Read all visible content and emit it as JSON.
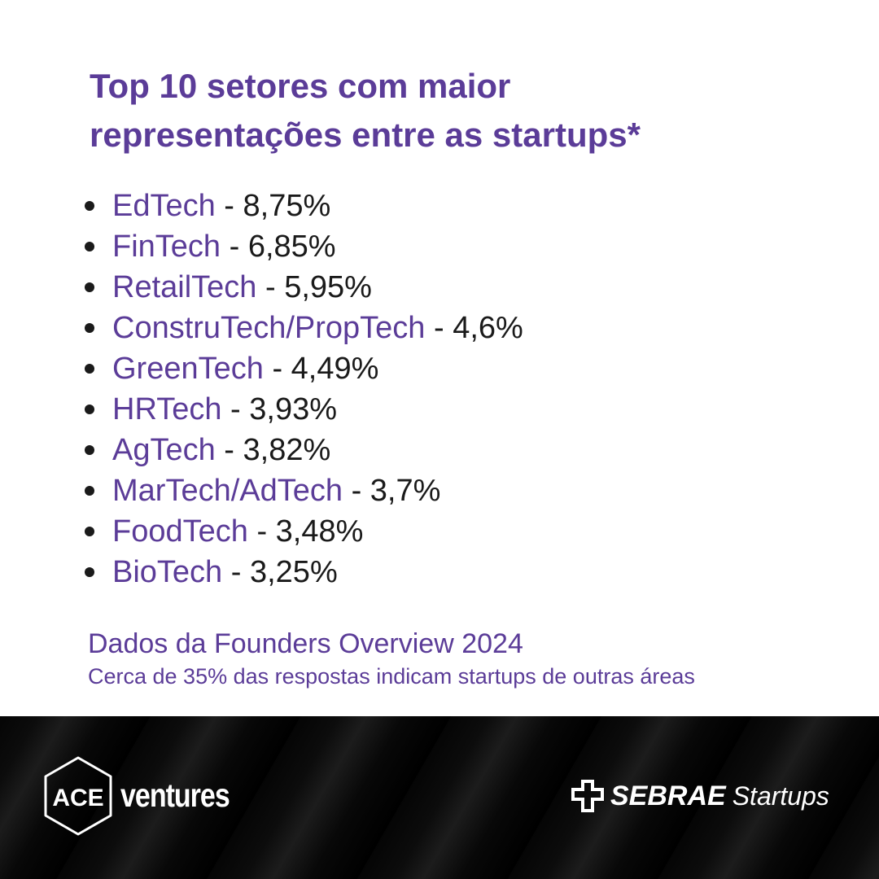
{
  "title": {
    "line1": "Top 10 setores com maior",
    "line2": "representações entre as startups*"
  },
  "items": [
    {
      "sector": "EdTech",
      "value": "8,75%"
    },
    {
      "sector": "FinTech",
      "value": "6,85%"
    },
    {
      "sector": "RetailTech",
      "value": "5,95%"
    },
    {
      "sector": "ConstruTech/PropTech",
      "value": "4,6%"
    },
    {
      "sector": "GreenTech",
      "value": "4,49%"
    },
    {
      "sector": "HRTech",
      "value": "3,93%"
    },
    {
      "sector": "AgTech",
      "value": "3,82%"
    },
    {
      "sector": "MarTech/AdTech",
      "value": "3,7%"
    },
    {
      "sector": "FoodTech",
      "value": "3,48%"
    },
    {
      "sector": "BioTech",
      "value": "3,25%"
    }
  ],
  "separator": " - ",
  "footer": {
    "source": "Dados da Founders Overview 2024",
    "note": "Cerca de 35% das respostas indicam startups de outras áreas"
  },
  "logos": {
    "ace": {
      "mark": "ACE",
      "word": "ventures"
    },
    "sebrae": {
      "bold": "SEBRAE",
      "word": "Startups"
    }
  },
  "colors": {
    "accent": "#5b3c98",
    "text": "#1a1a1a",
    "band": "#000000"
  }
}
